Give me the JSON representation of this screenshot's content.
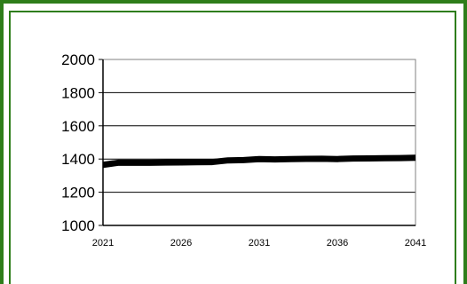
{
  "chart_data": {
    "type": "line",
    "x": [
      2021,
      2022,
      2023,
      2024,
      2025,
      2026,
      2027,
      2028,
      2029,
      2030,
      2031,
      2032,
      2033,
      2034,
      2035,
      2036,
      2037,
      2038,
      2039,
      2040,
      2041
    ],
    "series": [
      {
        "values": [
          1365,
          1378,
          1378,
          1378,
          1379,
          1380,
          1381,
          1382,
          1392,
          1394,
          1400,
          1398,
          1400,
          1401,
          1402,
          1400,
          1403,
          1404,
          1405,
          1406,
          1408
        ],
        "color": "#000000"
      }
    ],
    "xticks": [
      "2021",
      "2026",
      "2031",
      "2036",
      "2041"
    ],
    "yticks": [
      "1000",
      "1200",
      "1400",
      "1600",
      "1800",
      "2000"
    ],
    "ylim": [
      1000,
      2000
    ],
    "xlim": [
      2021,
      2041
    ],
    "grid": true,
    "title": "",
    "xlabel": "",
    "ylabel": ""
  },
  "colors": {
    "frame": "#2e7d1a",
    "gridline": "#000000",
    "plot_border": "#808080"
  }
}
